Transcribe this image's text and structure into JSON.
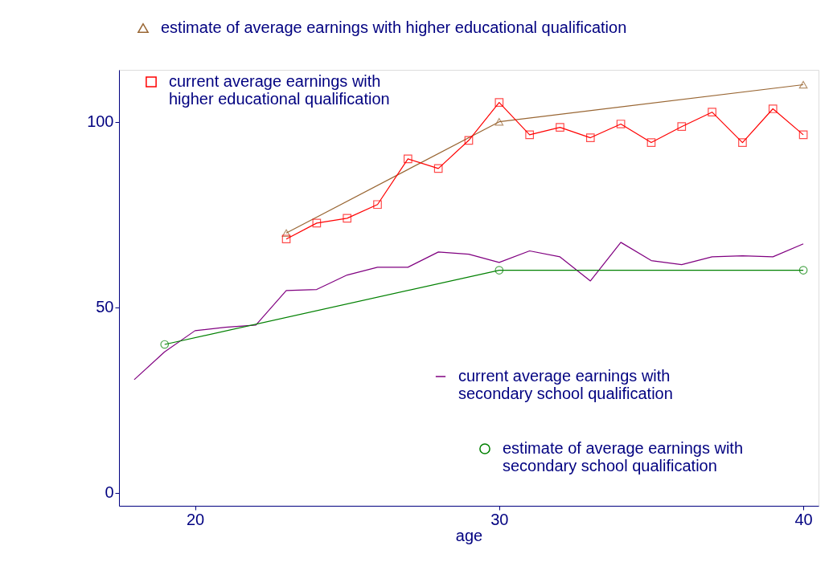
{
  "chart_data": {
    "type": "line",
    "xlabel": "age",
    "xlim": [
      17.5,
      40.5
    ],
    "xticks": [
      20,
      30,
      40
    ],
    "ylim": [
      -3.5,
      114
    ],
    "yticks": [
      0,
      50,
      100
    ],
    "grid": false,
    "legend": "top",
    "series": [
      {
        "name": "estimate of average earnings with higher educational qualification",
        "color": "#996633",
        "marker": "triangle",
        "x": [
          23,
          30,
          40
        ],
        "values": [
          70,
          100,
          110
        ]
      },
      {
        "name": "current  average earnings with higher educational qualification",
        "color": "#ff0000",
        "marker": "square",
        "x": [
          23,
          24,
          25,
          26,
          27,
          28,
          29,
          30,
          31,
          32,
          33,
          34,
          35,
          36,
          37,
          38,
          39,
          40
        ],
        "values": [
          68.4,
          72.7,
          74.0,
          77.7,
          90.0,
          87.4,
          95.0,
          105.2,
          96.5,
          98.5,
          95.7,
          99.4,
          94.4,
          98.7,
          102.6,
          94.4,
          103.5,
          96.5
        ]
      },
      {
        "name": "current  average earnings with secondary school qualification",
        "color": "#800080",
        "marker": "none",
        "x": [
          18,
          19,
          20,
          21,
          22,
          23,
          24,
          25,
          26,
          27,
          28,
          29,
          30,
          31,
          32,
          33,
          34,
          35,
          36,
          37,
          38,
          39,
          40
        ],
        "values": [
          30.5,
          38,
          43.7,
          44.6,
          45.2,
          54.5,
          54.8,
          58.7,
          60.8,
          60.8,
          64.9,
          64.3,
          62.1,
          65.2,
          63.6,
          57.1,
          67.5,
          62.6,
          61.5,
          63.6,
          63.9,
          63.6,
          67.1
        ]
      },
      {
        "name": "estimate of average earnings with secondary school qualification",
        "color": "#008000",
        "marker": "circle",
        "x": [
          19,
          30,
          40
        ],
        "values": [
          40,
          60,
          60
        ]
      }
    ]
  }
}
